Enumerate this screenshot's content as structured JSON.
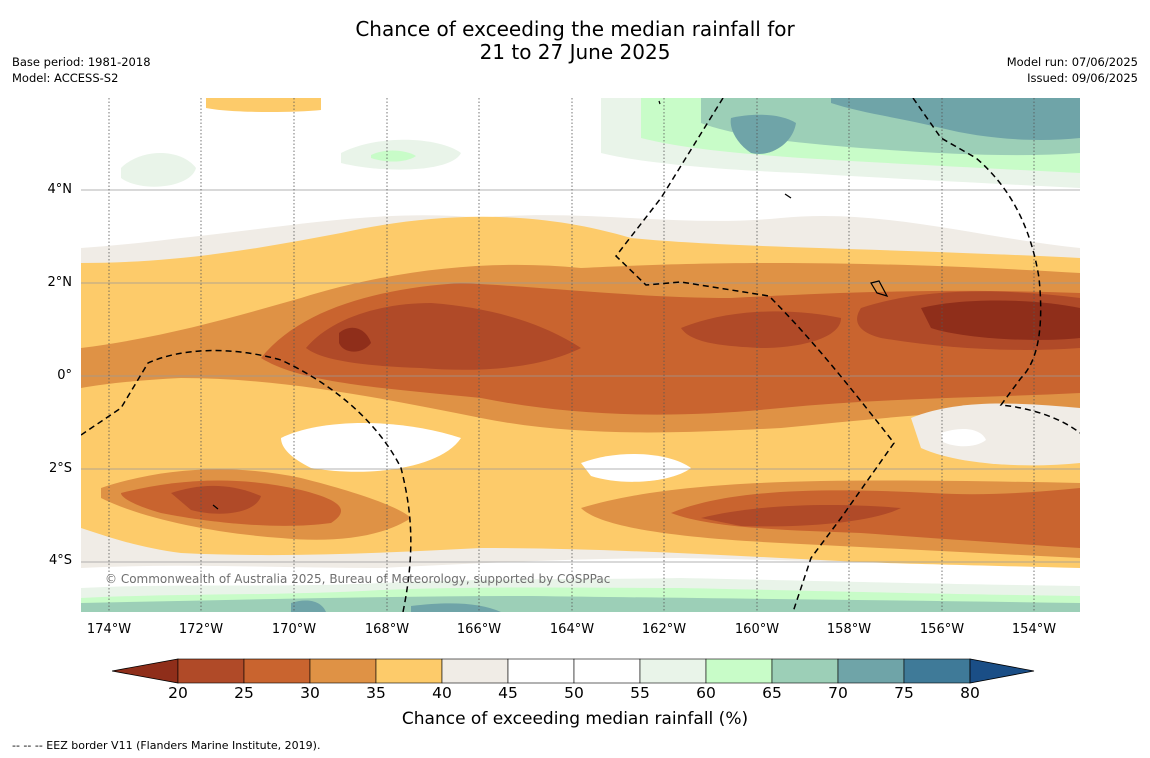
{
  "title": {
    "line1": "Chance of exceeding the median rainfall for",
    "line2": "21 to 27 June 2025"
  },
  "meta_left": {
    "base_period": "Base period: 1981-2018",
    "model": "Model: ACCESS-S2"
  },
  "meta_right": {
    "model_run": "Model run: 07/06/2025",
    "issued": "Issued: 09/06/2025"
  },
  "map": {
    "lat_labels": [
      "4°N",
      "2°N",
      "0°",
      "2°S",
      "4°S"
    ],
    "lon_labels": [
      "174°W",
      "172°W",
      "170°W",
      "168°W",
      "166°W",
      "164°W",
      "162°W",
      "160°W",
      "158°W",
      "156°W",
      "154°W"
    ],
    "copyright": "© Commonwealth of Australia 2025, Bureau of Meteorology, supported by COSPPac"
  },
  "colorbar": {
    "ticks": [
      "20",
      "25",
      "30",
      "35",
      "40",
      "45",
      "50",
      "55",
      "60",
      "65",
      "70",
      "75",
      "80"
    ],
    "colors": [
      "#8f2e1a",
      "#b04a28",
      "#c9642f",
      "#df9245",
      "#fdcb6a",
      "#f0ece6",
      "#ffffff",
      "#ffffff",
      "#e9f4e9",
      "#c8fcc8",
      "#9ccfb7",
      "#6fa4a8",
      "#3f7a98",
      "#1a4e86"
    ],
    "label": "Chance of exceeding median rainfall (%)"
  },
  "footnote": "--  --  -- EEZ border V11 (Flanders Marine Institute, 2019)."
}
